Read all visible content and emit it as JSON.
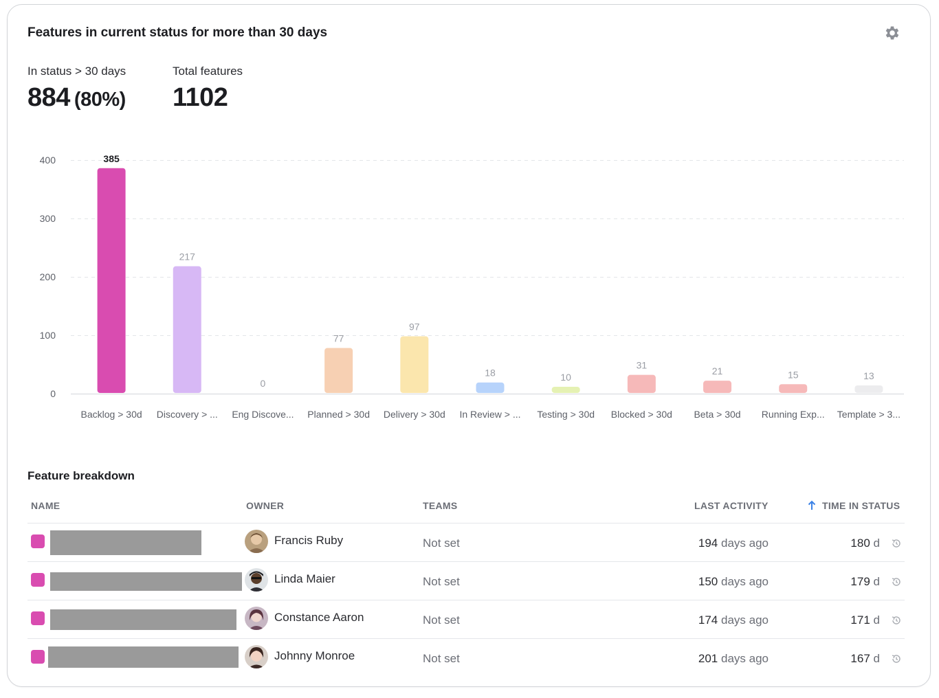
{
  "header": {
    "title": "Features in current status for more than 30 days",
    "settings_icon": "gear-icon"
  },
  "stats": [
    {
      "label": "In status > 30 days",
      "value": "884",
      "pct": "(80%)"
    },
    {
      "label": "Total features",
      "value": "1102",
      "pct": ""
    }
  ],
  "chart_data": {
    "type": "bar",
    "categories": [
      "Backlog > 30d",
      "Discovery > ...",
      "Eng Discove...",
      "Planned > 30d",
      "Delivery > 30d",
      "In Review > ...",
      "Testing > 30d",
      "Blocked > 30d",
      "Beta > 30d",
      "Running Exp...",
      "Template > 3..."
    ],
    "values": [
      385,
      217,
      0,
      77,
      97,
      18,
      10,
      31,
      21,
      15,
      13
    ],
    "colors": [
      "#d94cb0",
      "#d7b8f5",
      "#cccccc",
      "#f7d0b3",
      "#fbe6ad",
      "#b7d3fb",
      "#e5f1b3",
      "#f6b9b9",
      "#f6b9b9",
      "#f6b9b9",
      "#ececee"
    ],
    "highlighted_index": 0,
    "yticks": [
      0,
      100,
      200,
      300,
      400
    ],
    "ylim": [
      0,
      400
    ],
    "grid": true,
    "legend": "none",
    "title": "",
    "xlabel": "",
    "ylabel": ""
  },
  "breakdown": {
    "title": "Feature breakdown",
    "columns": {
      "name": "NAME",
      "owner": "OWNER",
      "teams": "TEAMS",
      "last_activity": "LAST ACTIVITY",
      "time_in_status": "TIME IN STATUS"
    },
    "sort_icon": "arrow-up-icon",
    "rows": [
      {
        "owner": "Francis Ruby",
        "teams": "Not set",
        "activity_num": "194",
        "activity_unit": "days ago",
        "time_num": "180",
        "time_unit": "d",
        "name_color": "#d94cb0"
      },
      {
        "owner": "Linda Maier",
        "teams": "Not set",
        "activity_num": "150",
        "activity_unit": "days ago",
        "time_num": "179",
        "time_unit": "d",
        "name_color": "#d94cb0"
      },
      {
        "owner": "Constance Aaron",
        "teams": "Not set",
        "activity_num": "174",
        "activity_unit": "days ago",
        "time_num": "171",
        "time_unit": "d",
        "name_color": "#d94cb0"
      },
      {
        "owner": "Johnny Monroe",
        "teams": "Not set",
        "activity_num": "201",
        "activity_unit": "days ago",
        "time_num": "167",
        "time_unit": "d",
        "name_color": "#d94cb0"
      }
    ]
  }
}
